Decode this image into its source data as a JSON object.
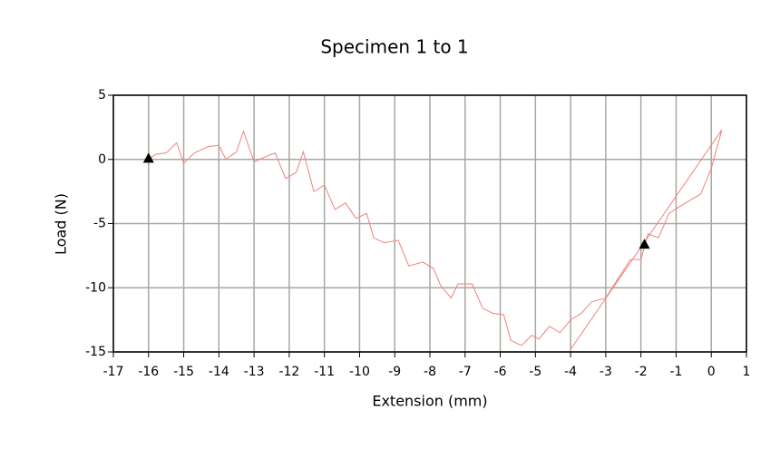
{
  "chart_data": {
    "type": "line",
    "title": "Specimen 1 to 1",
    "x_label": "Extension (mm)",
    "y_label": "Load (N)",
    "xlim": [
      -17,
      1
    ],
    "ylim": [
      -15,
      5
    ],
    "xticks": [
      -17,
      -16,
      -15,
      -14,
      -13,
      -12,
      -11,
      -10,
      -9,
      -8,
      -7,
      -6,
      -5,
      -4,
      -3,
      -2,
      -1,
      0,
      1
    ],
    "yticks": [
      -15,
      -10,
      -5,
      0,
      5
    ],
    "grid": true,
    "series": [
      {
        "color": "#f08080",
        "x": [
          -16,
          -15.8,
          -15.5,
          -15.2,
          -15,
          -14.7,
          -14.3,
          -14,
          -13.8,
          -13.5,
          -13.3,
          -13,
          -12.6,
          -12.4,
          -12.1,
          -11.8,
          -11.6,
          -11.3,
          -11,
          -10.7,
          -10.4,
          -10.1,
          -9.8,
          -9.6,
          -9.3,
          -8.9,
          -8.6,
          -8.2,
          -7.9,
          -7.7,
          -7.4,
          -7.2,
          -6.8,
          -6.5,
          -6.2,
          -5.9,
          -5.7,
          -5.4,
          -5.1,
          -4.9,
          -4.6,
          -4.3,
          -4,
          -3.7,
          -3.4,
          -3,
          -2.7,
          -2.3,
          -2,
          -1.8,
          -1.5,
          -1.2,
          -0.8,
          -0.3,
          0,
          0.3,
          -4
        ],
        "values": [
          0,
          0.4,
          0.5,
          1.3,
          -0.3,
          0.5,
          1,
          1.1,
          0,
          0.6,
          2.2,
          -0.2,
          0.3,
          0.5,
          -1.5,
          -1,
          0.6,
          -2.5,
          -2,
          -3.9,
          -3.4,
          -4.6,
          -4.2,
          -6.1,
          -6.5,
          -6.3,
          -8.3,
          -8,
          -8.5,
          -9.8,
          -10.8,
          -9.7,
          -9.7,
          -11.6,
          -12,
          -12.1,
          -14.1,
          -14.5,
          -13.7,
          -14,
          -13,
          -13.5,
          -12.5,
          -12,
          -11.1,
          -10.8,
          -9.5,
          -7.8,
          -7.8,
          -5.8,
          -6.1,
          -4.2,
          -3.5,
          -2.7,
          -0.7,
          2.3,
          -14.8
        ]
      }
    ],
    "markers": {
      "color": "#000000",
      "x": [
        -16,
        -1.9
      ],
      "y": [
        0.1,
        -6.6
      ]
    }
  }
}
